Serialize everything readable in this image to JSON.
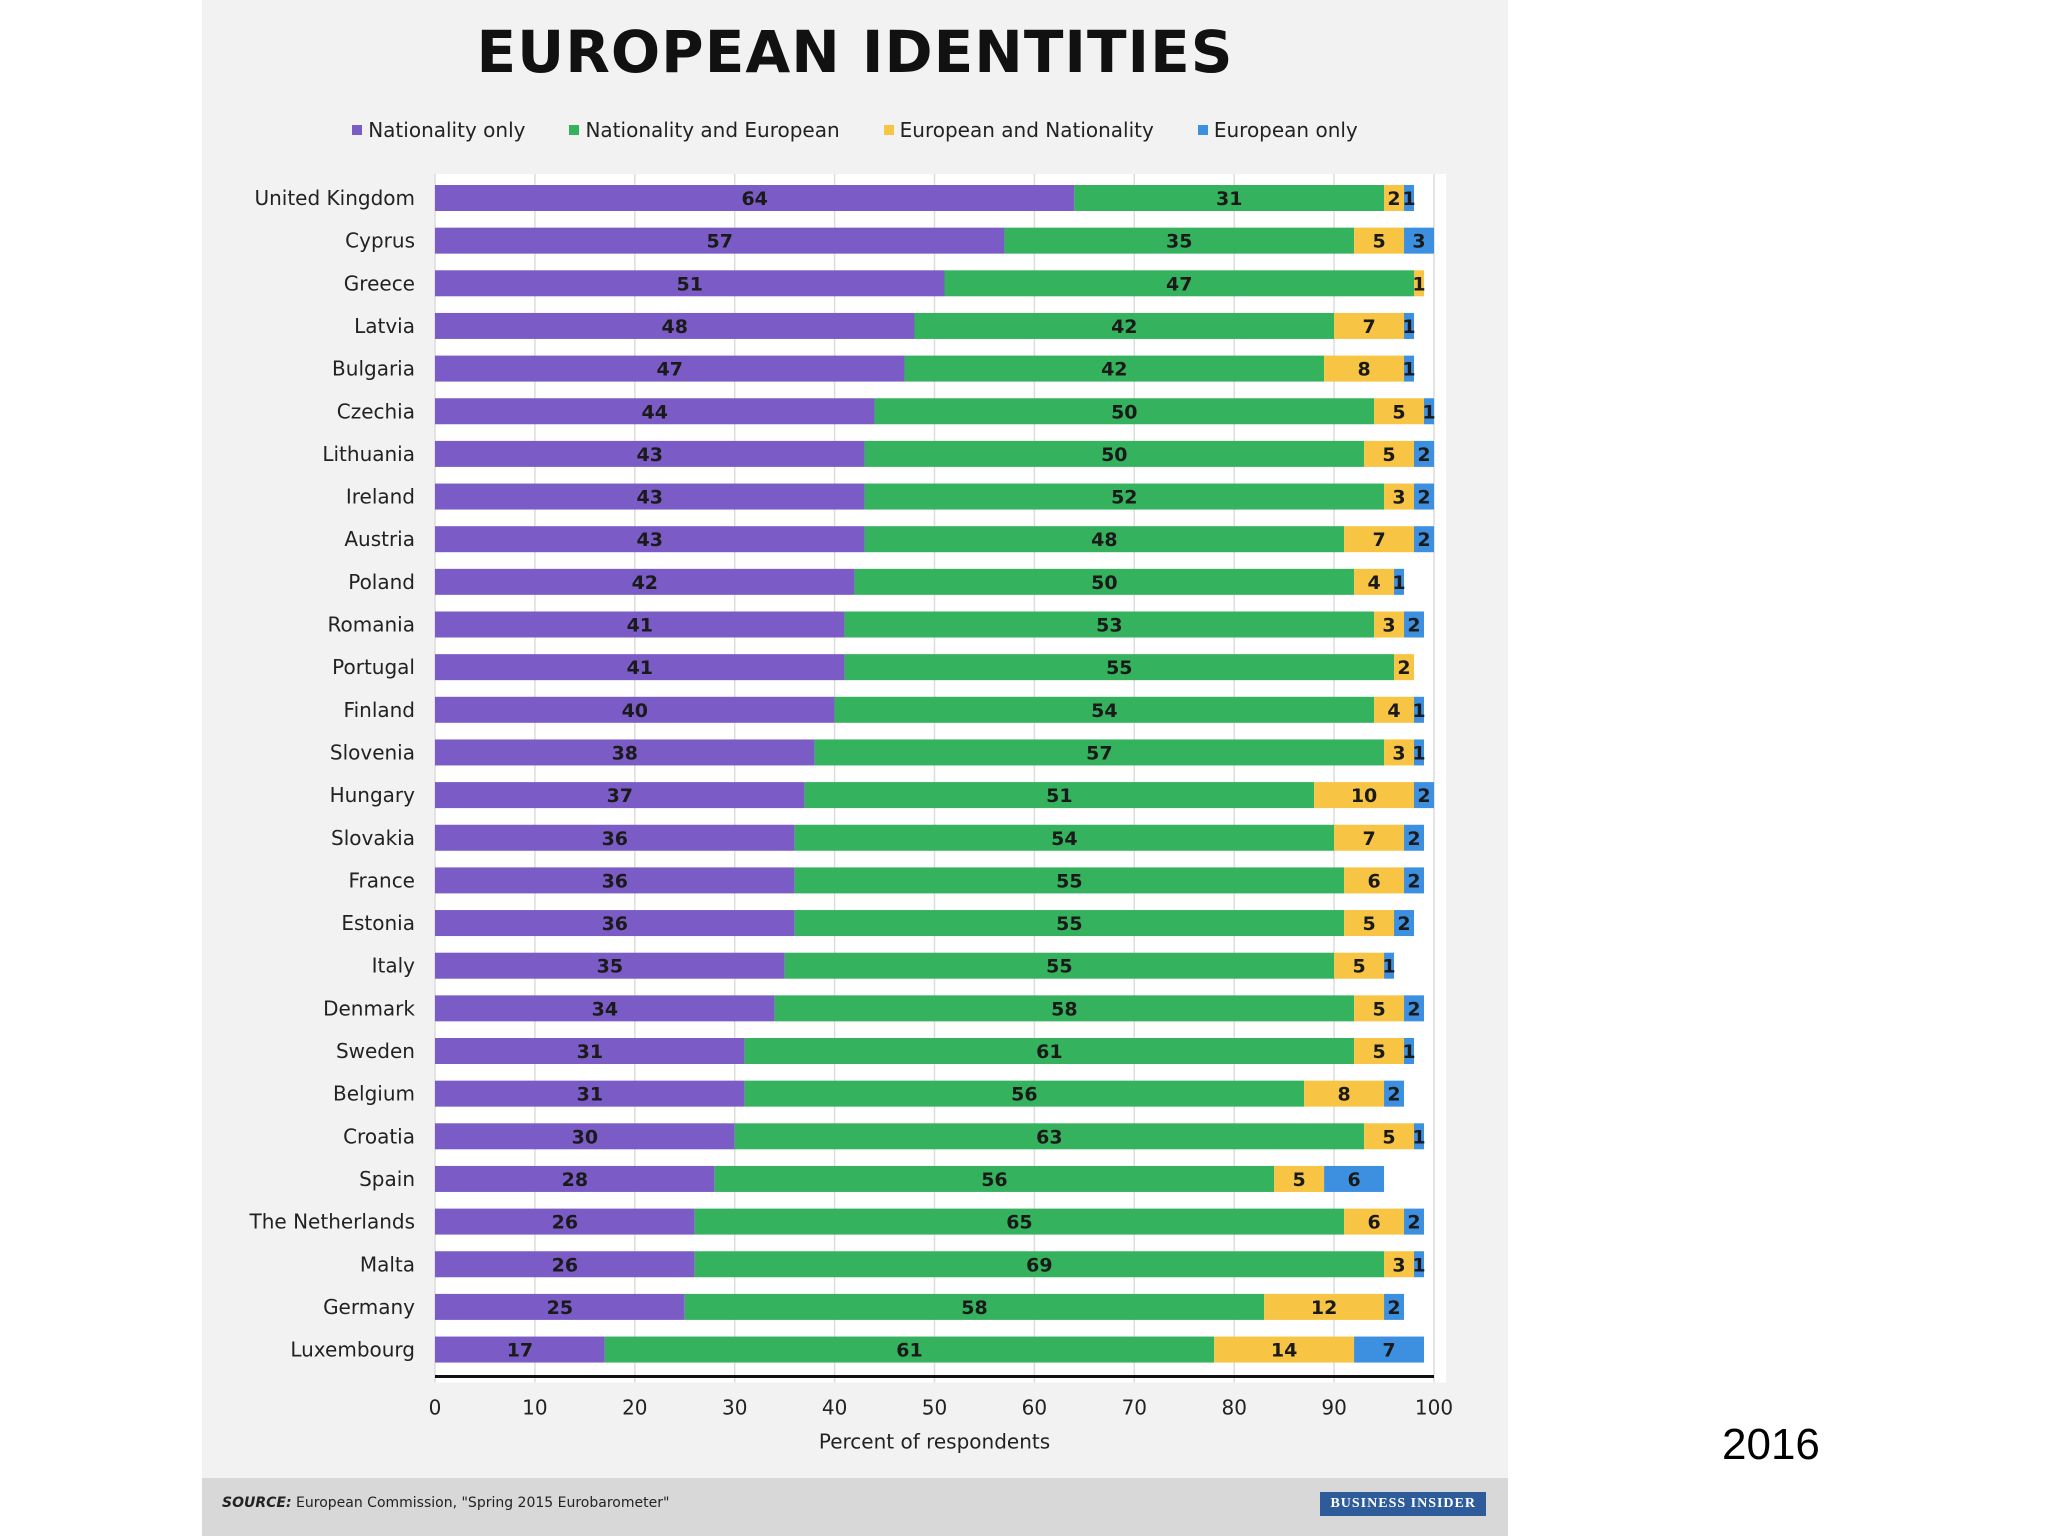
{
  "page": {
    "year_label": "2016"
  },
  "chart_data": {
    "type": "bar",
    "orientation": "horizontal-stacked",
    "title": "EUROPEAN IDENTITIES",
    "xlabel": "Percent of respondents",
    "ylabel": "",
    "xlim": [
      0,
      100
    ],
    "xticks": [
      0,
      10,
      20,
      30,
      40,
      50,
      60,
      70,
      80,
      90,
      100
    ],
    "grid": true,
    "legend_position": "top",
    "categories": [
      "United Kingdom",
      "Cyprus",
      "Greece",
      "Latvia",
      "Bulgaria",
      "Czechia",
      "Lithuania",
      "Ireland",
      "Austria",
      "Poland",
      "Romania",
      "Portugal",
      "Finland",
      "Slovenia",
      "Hungary",
      "Slovakia",
      "France",
      "Estonia",
      "Italy",
      "Denmark",
      "Sweden",
      "Belgium",
      "Croatia",
      "Spain",
      "The Netherlands",
      "Malta",
      "Germany",
      "Luxembourg"
    ],
    "series": [
      {
        "name": "Nationality only",
        "color": "#7b5cc7",
        "values": [
          64,
          57,
          51,
          48,
          47,
          44,
          43,
          43,
          43,
          42,
          41,
          41,
          40,
          38,
          37,
          36,
          36,
          36,
          35,
          34,
          31,
          31,
          30,
          28,
          26,
          26,
          25,
          17
        ]
      },
      {
        "name": "Nationality and European",
        "color": "#35b25d",
        "values": [
          31,
          35,
          47,
          42,
          42,
          50,
          50,
          52,
          48,
          50,
          53,
          55,
          54,
          57,
          51,
          54,
          55,
          55,
          55,
          58,
          61,
          56,
          63,
          56,
          65,
          69,
          58,
          61
        ]
      },
      {
        "name": "European and Nationality",
        "color": "#f8c443",
        "values": [
          2,
          5,
          1,
          7,
          8,
          5,
          5,
          3,
          7,
          4,
          3,
          2,
          4,
          3,
          10,
          7,
          6,
          5,
          5,
          5,
          5,
          8,
          5,
          5,
          6,
          3,
          12,
          14
        ]
      },
      {
        "name": "European only",
        "color": "#3d8fe0",
        "values": [
          1,
          3,
          0,
          1,
          1,
          1,
          2,
          2,
          2,
          1,
          2,
          0,
          1,
          1,
          2,
          2,
          2,
          2,
          1,
          2,
          1,
          2,
          1,
          6,
          2,
          1,
          2,
          7
        ]
      }
    ]
  },
  "footer": {
    "source_label": "SOURCE:",
    "source_text": "European Commission, \"Spring 2015 Eurobarometer\"",
    "brand": "BUSINESS INSIDER"
  }
}
